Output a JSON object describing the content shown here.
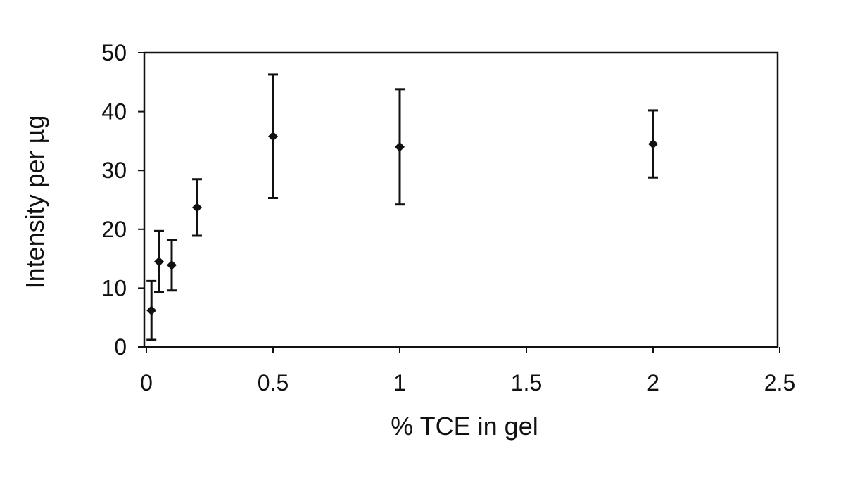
{
  "chart_data": {
    "type": "scatter",
    "title": "",
    "xlabel": "% TCE in gel",
    "ylabel": "Intensity per µg",
    "xlim": [
      0,
      2.5
    ],
    "ylim": [
      0,
      50
    ],
    "x_ticks": [
      0,
      0.5,
      1,
      1.5,
      2,
      2.5
    ],
    "x_tick_labels": [
      "0",
      "0.5",
      "1",
      "1.5",
      "2",
      "2.5"
    ],
    "y_ticks": [
      0,
      10,
      20,
      30,
      40,
      50
    ],
    "y_tick_labels": [
      "0",
      "10",
      "20",
      "30",
      "40",
      "50"
    ],
    "grid": false,
    "legend": "none",
    "marker": "diamond",
    "color": "#111111",
    "series": [
      {
        "points": [
          {
            "x": 0.02,
            "y": 6.2,
            "err_low": 1.2,
            "err_high": 11.2
          },
          {
            "x": 0.05,
            "y": 14.5,
            "err_low": 9.3,
            "err_high": 19.7
          },
          {
            "x": 0.1,
            "y": 13.9,
            "err_low": 9.6,
            "err_high": 18.2
          },
          {
            "x": 0.2,
            "y": 23.7,
            "err_low": 18.9,
            "err_high": 28.5
          },
          {
            "x": 0.5,
            "y": 35.8,
            "err_low": 25.3,
            "err_high": 46.3
          },
          {
            "x": 1.0,
            "y": 34.0,
            "err_low": 24.2,
            "err_high": 43.8
          },
          {
            "x": 2.0,
            "y": 34.5,
            "err_low": 28.8,
            "err_high": 40.2
          }
        ]
      }
    ]
  }
}
